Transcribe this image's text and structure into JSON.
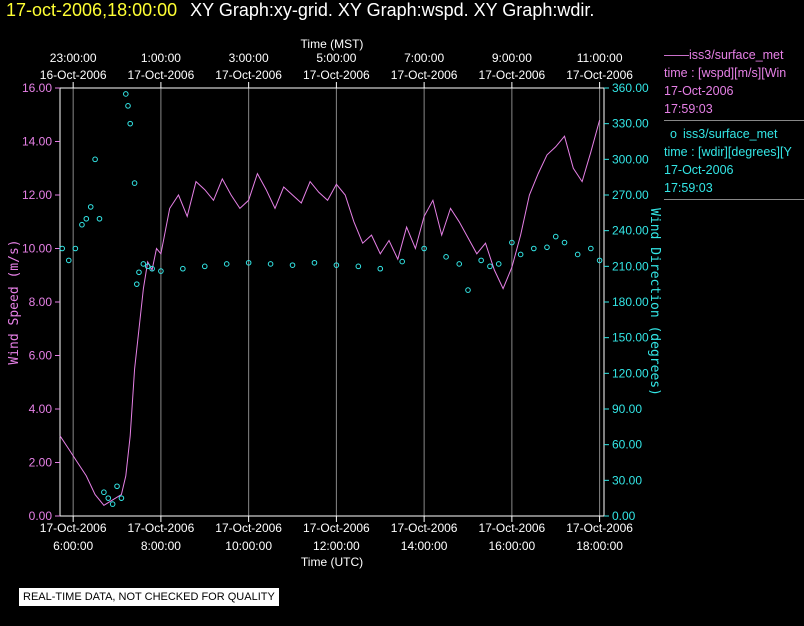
{
  "header": {
    "timestamp": "17-oct-2006,18:00:00",
    "titles": "XY Graph:xy-grid.  XY Graph:wspd.  XY Graph:wdir."
  },
  "legend": {
    "series1": {
      "label": "iss3/surface_met",
      "field": "time : [wspd][m/s][Win",
      "date": "17-Oct-2006",
      "time": "17:59:03"
    },
    "series2": {
      "label": "iss3/surface_met",
      "field": "time : [wdir][degrees][Y",
      "date": "17-Oct-2006",
      "time": "17:59:03"
    }
  },
  "quality_banner": "REAL-TIME DATA, NOT CHECKED FOR QUALITY",
  "colors": {
    "wspd": "#e680e6",
    "wdir": "#33e6e6",
    "grid": "#888888",
    "background": "#000000",
    "axis": "#ffffff"
  },
  "chart_data": {
    "type": "line",
    "top_axis_title": "Time (MST)",
    "bottom_axis_title": "Time (UTC)",
    "left_axis_title": "Wind Speed (m/s)",
    "right_axis_title": "Wind Direction (degrees)",
    "x_range_utc_hours": [
      5.7,
      18.1
    ],
    "top_ticks": [
      {
        "hour": 6,
        "time": "23:00:00",
        "date": "16-Oct-2006"
      },
      {
        "hour": 8,
        "time": "1:00:00",
        "date": "17-Oct-2006"
      },
      {
        "hour": 10,
        "time": "3:00:00",
        "date": "17-Oct-2006"
      },
      {
        "hour": 12,
        "time": "5:00:00",
        "date": "17-Oct-2006"
      },
      {
        "hour": 14,
        "time": "7:00:00",
        "date": "17-Oct-2006"
      },
      {
        "hour": 16,
        "time": "9:00:00",
        "date": "17-Oct-2006"
      },
      {
        "hour": 18,
        "time": "11:00:00",
        "date": "17-Oct-2006"
      }
    ],
    "bottom_ticks": [
      {
        "hour": 6,
        "date": "17-Oct-2006",
        "time": "6:00:00"
      },
      {
        "hour": 8,
        "date": "17-Oct-2006",
        "time": "8:00:00"
      },
      {
        "hour": 10,
        "date": "17-Oct-2006",
        "time": "10:00:00"
      },
      {
        "hour": 12,
        "date": "17-Oct-2006",
        "time": "12:00:00"
      },
      {
        "hour": 14,
        "date": "17-Oct-2006",
        "time": "14:00:00"
      },
      {
        "hour": 16,
        "date": "17-Oct-2006",
        "time": "16:00:00"
      },
      {
        "hour": 18,
        "date": "17-Oct-2006",
        "time": "18:00:00"
      }
    ],
    "left_ylim": [
      0,
      16
    ],
    "left_tick_labels": [
      "0.00",
      "2.00",
      "4.00",
      "6.00",
      "8.00",
      "10.00",
      "12.00",
      "14.00",
      "16.00"
    ],
    "right_ylim": [
      0,
      360
    ],
    "right_tick_labels": [
      "0.00",
      "30.00",
      "60.00",
      "90.00",
      "120.00",
      "150.00",
      "180.00",
      "210.00",
      "240.00",
      "270.00",
      "300.00",
      "330.00",
      "360.00"
    ],
    "grid": "vertical lines at bottom ticks",
    "series": [
      {
        "name": "wspd",
        "style": "line",
        "x": [
          5.7,
          5.9,
          6.1,
          6.3,
          6.5,
          6.7,
          6.9,
          7.1,
          7.2,
          7.3,
          7.4,
          7.5,
          7.6,
          7.7,
          7.8,
          7.9,
          8.0,
          8.2,
          8.4,
          8.6,
          8.8,
          9.0,
          9.2,
          9.4,
          9.6,
          9.8,
          10.0,
          10.2,
          10.4,
          10.6,
          10.8,
          11.0,
          11.2,
          11.4,
          11.6,
          11.8,
          12.0,
          12.2,
          12.4,
          12.6,
          12.8,
          13.0,
          13.2,
          13.4,
          13.6,
          13.8,
          14.0,
          14.2,
          14.4,
          14.6,
          14.8,
          15.0,
          15.2,
          15.4,
          15.6,
          15.8,
          16.0,
          16.2,
          16.4,
          16.6,
          16.8,
          17.0,
          17.2,
          17.4,
          17.6,
          17.8,
          18.0
        ],
        "values": [
          3.0,
          2.5,
          2.0,
          1.5,
          0.8,
          0.4,
          0.6,
          0.8,
          1.5,
          3.0,
          5.5,
          7.0,
          8.5,
          9.5,
          9.2,
          10.0,
          9.8,
          11.5,
          12.0,
          11.2,
          12.5,
          12.2,
          11.8,
          12.6,
          12.0,
          11.5,
          11.8,
          12.8,
          12.2,
          11.5,
          12.3,
          12.0,
          11.7,
          12.5,
          12.1,
          11.8,
          12.4,
          12.0,
          11.0,
          10.2,
          10.5,
          9.8,
          10.3,
          9.6,
          10.8,
          10.0,
          11.2,
          11.8,
          10.5,
          11.5,
          11.0,
          10.4,
          9.8,
          10.2,
          9.2,
          8.5,
          9.3,
          10.5,
          12.0,
          12.8,
          13.5,
          13.8,
          14.2,
          13.0,
          12.5,
          13.6,
          14.8
        ]
      },
      {
        "name": "wdir",
        "style": "points",
        "x": [
          5.75,
          5.9,
          6.05,
          6.2,
          6.3,
          6.4,
          6.5,
          6.6,
          6.7,
          6.8,
          6.9,
          7.0,
          7.1,
          7.2,
          7.25,
          7.3,
          7.4,
          7.45,
          7.5,
          7.6,
          7.7,
          7.8,
          8.0,
          8.5,
          9.0,
          9.5,
          10.0,
          10.5,
          11.0,
          11.5,
          12.0,
          12.5,
          13.0,
          13.5,
          14.0,
          14.5,
          14.8,
          15.0,
          15.3,
          15.5,
          15.7,
          16.0,
          16.2,
          16.5,
          16.8,
          17.0,
          17.2,
          17.5,
          17.8,
          18.0
        ],
        "values": [
          225,
          215,
          225,
          245,
          250,
          260,
          300,
          250,
          20,
          15,
          10,
          25,
          15,
          355,
          345,
          330,
          280,
          195,
          205,
          212,
          210,
          208,
          206,
          208,
          210,
          212,
          213,
          212,
          211,
          213,
          211,
          210,
          208,
          214,
          225,
          218,
          212,
          190,
          215,
          210,
          212,
          230,
          220,
          225,
          226,
          235,
          230,
          220,
          225,
          215
        ]
      }
    ]
  }
}
